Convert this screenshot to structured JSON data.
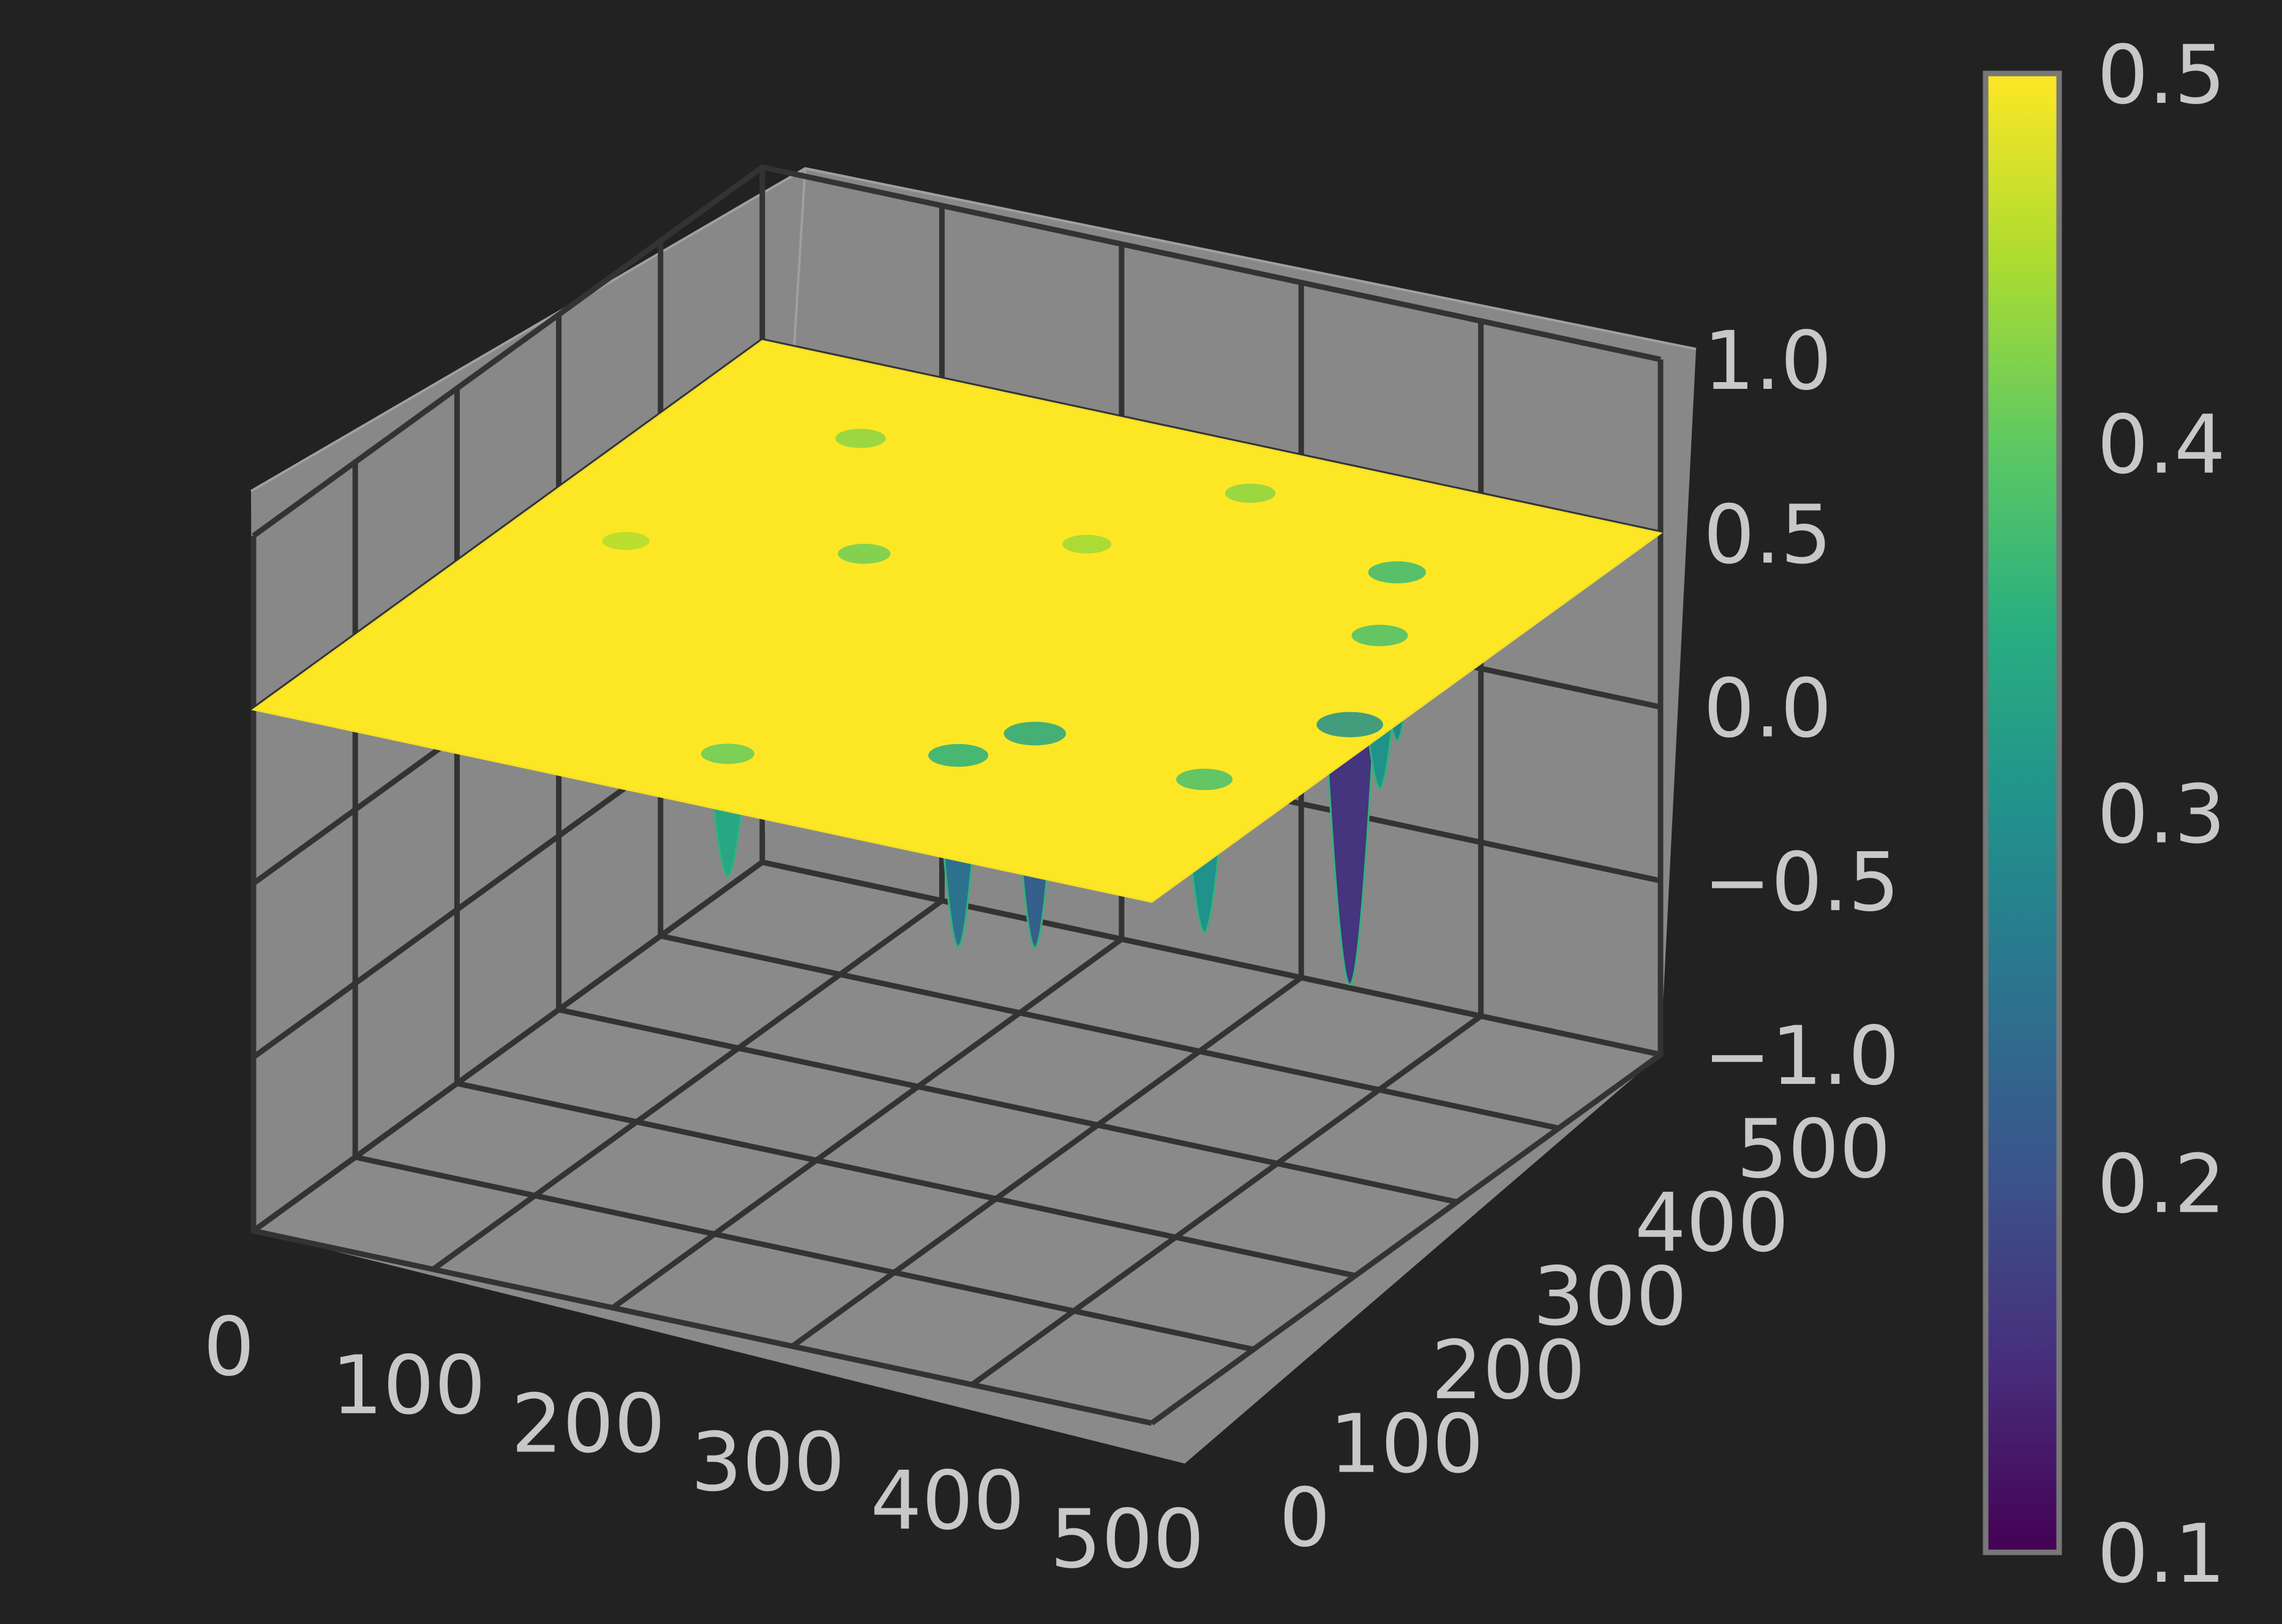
{
  "chart_data": {
    "type": "surface",
    "title": "",
    "xlabel": "",
    "ylabel": "",
    "zlabel": "",
    "grid": true,
    "colormap": "viridis",
    "x_ticks": [
      "0",
      "100",
      "200",
      "300",
      "400",
      "500"
    ],
    "y_ticks": [
      "0",
      "100",
      "200",
      "300",
      "400",
      "500"
    ],
    "z_ticks": [
      "−1.0",
      "−0.5",
      "0.0",
      "0.5",
      "1.0"
    ],
    "x_range": [
      0,
      500
    ],
    "y_range": [
      0,
      500
    ],
    "z_range": [
      -1.0,
      1.0
    ],
    "surface": {
      "plateau_z": 0.5,
      "min_z": 0.1,
      "description": "flat plateau at z≈0.5 with scattered downward wells"
    },
    "wells": [
      {
        "x": 100,
        "y": 420,
        "depth": 0.12
      },
      {
        "x": 170,
        "y": 300,
        "depth": 0.15
      },
      {
        "x": 260,
        "y": 360,
        "depth": 0.1
      },
      {
        "x": 330,
        "y": 110,
        "depth": 0.25
      },
      {
        "x": 350,
        "y": 150,
        "depth": 0.28
      },
      {
        "x": 450,
        "y": 140,
        "depth": 0.2
      },
      {
        "x": 480,
        "y": 230,
        "depth": 0.34
      },
      {
        "x": 410,
        "y": 400,
        "depth": 0.22
      },
      {
        "x": 440,
        "y": 330,
        "depth": 0.2
      },
      {
        "x": 300,
        "y": 450,
        "depth": 0.12
      },
      {
        "x": 60,
        "y": 260,
        "depth": 0.08
      },
      {
        "x": 230,
        "y": 60,
        "depth": 0.16
      }
    ],
    "colorbar": {
      "ticks": [
        "0.1",
        "0.2",
        "0.3",
        "0.4",
        "0.5"
      ],
      "range": [
        0.1,
        0.5
      ]
    }
  },
  "colors": {
    "background": "#222222",
    "pane": "#888888",
    "grid": "#333333",
    "tick_text": "#c8c8c8",
    "colorbar_frame": "#777777"
  }
}
